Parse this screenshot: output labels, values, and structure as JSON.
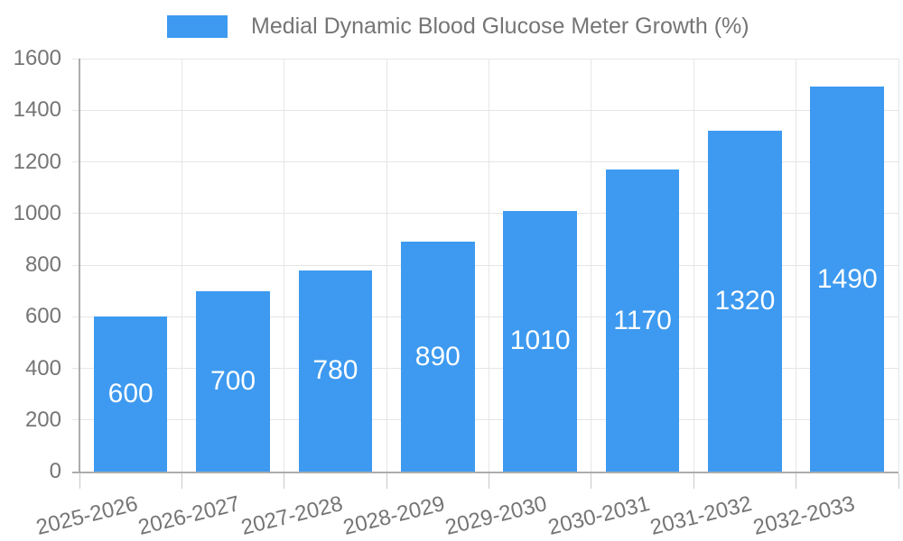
{
  "chart_data": {
    "type": "bar",
    "title": "Medial Dynamic Blood Glucose Meter Growth (%)",
    "legend": {
      "position": "top",
      "label": "Medial Dynamic Blood Glucose Meter Growth (%)"
    },
    "categories": [
      "2025-2026",
      "2026-2027",
      "2027-2028",
      "2028-2029",
      "2029-2030",
      "2030-2031",
      "2031-2032",
      "2032-2033"
    ],
    "values": [
      600,
      700,
      780,
      890,
      1010,
      1170,
      1320,
      1490
    ],
    "xlabel": "",
    "ylabel": "",
    "ylim": [
      0,
      1600
    ],
    "yticks": [
      0,
      200,
      400,
      600,
      800,
      1000,
      1200,
      1400,
      1600
    ],
    "grid": "horizontal-and-vertical",
    "value_label_position": "inside-center",
    "x_label_rotation_deg": -14,
    "colors": {
      "bar": "#3D9AF0",
      "grid": "#E6E6E6",
      "axis": "#ACACAC",
      "axis_tick": "#C9C9C9",
      "tick_text": "#757575",
      "legend_text": "#757575",
      "value_label": "#FFFFFF",
      "background": "#FFFFFF"
    }
  }
}
